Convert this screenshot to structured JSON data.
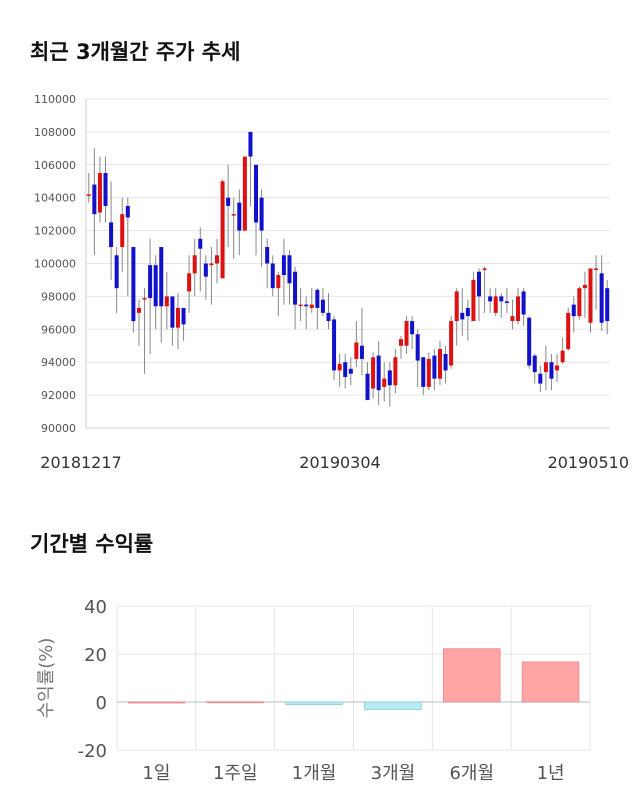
{
  "titles": {
    "price": "최근 3개월간 주가 추세",
    "returns": "기간별 수익률"
  },
  "colors": {
    "up": "#dd1111",
    "down": "#1111cc",
    "wick": "#888888",
    "positive_bar": "#ffa5a5",
    "negative_bar": "#b6ecf2",
    "grid": "#e6e6e6"
  },
  "chart_data": [
    {
      "type": "candlestick",
      "title": "최근 3개월간 주가 추세",
      "ylim": [
        90000,
        110000
      ],
      "yticks": [
        "110000",
        "108000",
        "106000",
        "104000",
        "102000",
        "100000",
        "98000",
        "96000",
        "94000",
        "92000",
        "90000"
      ],
      "xticks": [
        "20181217",
        "20190304",
        "20190510"
      ],
      "grid": true,
      "candles": [
        [
          104200,
          104200,
          105500,
          103700
        ],
        [
          104800,
          103000,
          107000,
          100500
        ],
        [
          103100,
          105500,
          106500,
          102500
        ],
        [
          105500,
          103500,
          106500,
          102500
        ],
        [
          102500,
          101000,
          105000,
          99000
        ],
        [
          100500,
          98500,
          101000,
          97000
        ],
        [
          101000,
          103000,
          104000,
          99500
        ],
        [
          103500,
          102800,
          104000,
          98000
        ],
        [
          101000,
          96500,
          101000,
          95800
        ],
        [
          97000,
          97300,
          97800,
          95000
        ],
        [
          97900,
          97900,
          98500,
          93300
        ],
        [
          99900,
          97900,
          101500,
          94500
        ],
        [
          99900,
          97400,
          100500,
          96000
        ],
        [
          101000,
          97400,
          101000,
          95200
        ],
        [
          97400,
          98000,
          99500,
          96000
        ],
        [
          98000,
          96100,
          98000,
          95000
        ],
        [
          96100,
          97300,
          98200,
          94800
        ],
        [
          97300,
          96300,
          97300,
          95300
        ],
        [
          98300,
          99400,
          100500,
          97000
        ],
        [
          99400,
          100500,
          101500,
          98000
        ],
        [
          101500,
          100900,
          102200,
          98300
        ],
        [
          100000,
          99200,
          100500,
          97800
        ],
        [
          99900,
          100000,
          101000,
          97500
        ],
        [
          100000,
          100500,
          101500,
          98800
        ],
        [
          99100,
          105000,
          105100,
          99100
        ],
        [
          104000,
          103500,
          106000,
          101000
        ],
        [
          103000,
          103000,
          104000,
          100300
        ],
        [
          103700,
          102000,
          104500,
          100500
        ],
        [
          102000,
          106500,
          106500,
          102000
        ],
        [
          108000,
          106500,
          108000,
          103500
        ],
        [
          106000,
          102500,
          106000,
          100500
        ],
        [
          104000,
          102000,
          104500,
          99800
        ],
        [
          101000,
          100000,
          101500,
          98500
        ],
        [
          100000,
          98500,
          100500,
          98000
        ],
        [
          98500,
          99300,
          99500,
          96800
        ],
        [
          100500,
          99300,
          101500,
          97500
        ],
        [
          100500,
          98800,
          100800,
          97500
        ],
        [
          99500,
          97500,
          99800,
          96000
        ],
        [
          97500,
          97500,
          98500,
          96500
        ],
        [
          97500,
          97400,
          98000,
          96000
        ],
        [
          97300,
          97500,
          98500,
          97000
        ],
        [
          98400,
          97300,
          98500,
          96000
        ],
        [
          97800,
          97000,
          98500,
          96800
        ],
        [
          97000,
          96500,
          98200,
          96000
        ],
        [
          96600,
          93500,
          96800,
          92900
        ],
        [
          93500,
          93900,
          94500,
          92500
        ],
        [
          94000,
          93100,
          94500,
          92400
        ],
        [
          93600,
          93300,
          94300,
          92600
        ],
        [
          94200,
          95200,
          96500,
          93700
        ],
        [
          95000,
          94200,
          97300,
          93200
        ],
        [
          93300,
          91700,
          94000,
          91700
        ],
        [
          92400,
          94300,
          94600,
          91800
        ],
        [
          94400,
          92300,
          95300,
          91400
        ],
        [
          92500,
          93000,
          94000,
          91600
        ],
        [
          93500,
          92600,
          94000,
          91300
        ],
        [
          92600,
          94300,
          94800,
          92100
        ],
        [
          95000,
          95400,
          95600,
          94200
        ],
        [
          95000,
          96500,
          96800,
          94500
        ],
        [
          96500,
          95700,
          96800,
          94800
        ],
        [
          95700,
          94100,
          96000,
          92500
        ],
        [
          94300,
          92500,
          94300,
          92000
        ],
        [
          92500,
          94200,
          94600,
          92300
        ],
        [
          94400,
          93000,
          94800,
          92300
        ],
        [
          93000,
          94800,
          95300,
          92600
        ],
        [
          94500,
          93500,
          95000,
          92700
        ],
        [
          93800,
          96500,
          96800,
          93600
        ],
        [
          96500,
          98300,
          98500,
          95000
        ],
        [
          97000,
          96600,
          98500,
          95600
        ],
        [
          97300,
          96800,
          97800,
          95300
        ],
        [
          96500,
          99000,
          99500,
          96500
        ],
        [
          99500,
          98000,
          99700,
          96500
        ],
        [
          99700,
          99700,
          99800,
          97000
        ],
        [
          98000,
          97700,
          98500,
          97000
        ],
        [
          97000,
          98000,
          98500,
          96800
        ],
        [
          98000,
          97700,
          98200,
          96700
        ],
        [
          97700,
          97600,
          98500,
          97000
        ],
        [
          96500,
          96800,
          97800,
          96000
        ],
        [
          96500,
          98000,
          98500,
          96300
        ],
        [
          98300,
          96900,
          98500,
          96200
        ],
        [
          96700,
          93800,
          96800,
          93600
        ],
        [
          94400,
          93400,
          94500,
          92700
        ],
        [
          93300,
          92700,
          93800,
          92200
        ],
        [
          93400,
          94000,
          95000,
          92300
        ],
        [
          94000,
          93000,
          94500,
          92300
        ],
        [
          93500,
          93800,
          94500,
          92800
        ],
        [
          94000,
          94700,
          95500,
          93900
        ],
        [
          94800,
          97000,
          97300,
          94700
        ],
        [
          97500,
          96800,
          98000,
          95800
        ],
        [
          96800,
          98500,
          98600,
          96600
        ],
        [
          98500,
          98700,
          99500,
          96700
        ],
        [
          96400,
          99700,
          99700,
          95800
        ],
        [
          99700,
          99700,
          100500,
          97200
        ],
        [
          99400,
          96400,
          100500,
          95900
        ],
        [
          98500,
          96500,
          99000,
          95700
        ]
      ]
    },
    {
      "type": "bar",
      "title": "기간별 수익률",
      "ylabel": "수익률(%)",
      "ylim": [
        -20,
        40
      ],
      "yticks": [
        "40",
        "20",
        "0",
        "-20"
      ],
      "categories": [
        "1일",
        "1주일",
        "1개월",
        "3개월",
        "6개월",
        "1년"
      ],
      "values": [
        0,
        0.1,
        -1.1,
        -3.1,
        22.2,
        16.7
      ],
      "grid": true
    }
  ]
}
